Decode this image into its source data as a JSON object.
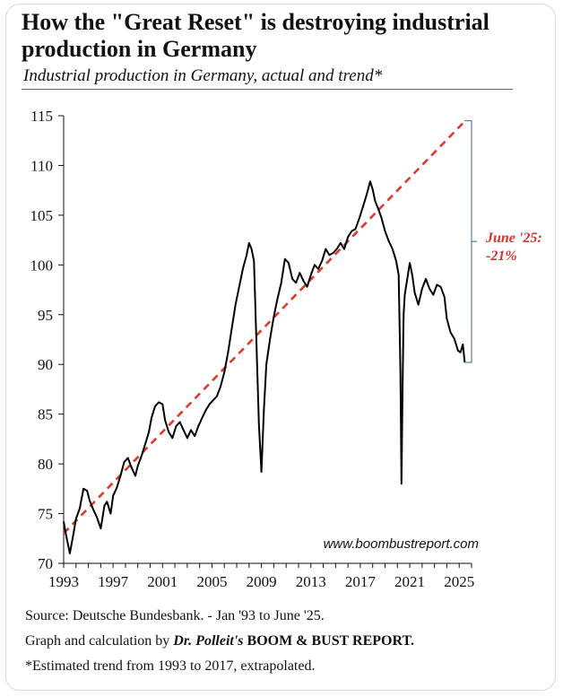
{
  "header": {
    "title": "How the \"Great Reset\" is destroying industrial production in Germany",
    "subtitle": "Industrial production in Germany, actual and trend*"
  },
  "annotation": {
    "line1": "June '25:",
    "line2": "-21%"
  },
  "watermark": "www.boombustreport.com",
  "footer": {
    "source": "Source: Deutsche Bundesbank. - Jan '93 to June '25.",
    "credit_prefix": "Graph and calculation by ",
    "credit_author": "Dr. Polleit's",
    "credit_report": "BOOM & BUST REPORT.",
    "note": "*Estimated trend from 1993 to 2017, extrapolated."
  },
  "colors": {
    "actual": "#000000",
    "trend": "#e0392b",
    "bracket": "#5b7fa6"
  },
  "chart_data": {
    "type": "line",
    "title": "Industrial production in Germany, actual and trend*",
    "xlim": [
      1993,
      2026
    ],
    "ylim": [
      70,
      115
    ],
    "yticks": [
      70,
      75,
      80,
      85,
      90,
      95,
      100,
      105,
      110,
      115
    ],
    "xticks": [
      "1993",
      "1997",
      "2001",
      "2005",
      "2009",
      "2013",
      "2017",
      "2021",
      "2025"
    ],
    "series": [
      {
        "style": "solid",
        "x": [
          1993.0,
          1993.2,
          1993.5,
          1993.8,
          1994.0,
          1994.3,
          1994.6,
          1994.9,
          1995.1,
          1995.4,
          1995.7,
          1996.0,
          1996.3,
          1996.5,
          1996.8,
          1997.0,
          1997.3,
          1997.6,
          1997.9,
          1998.2,
          1998.5,
          1998.8,
          1999.0,
          1999.3,
          1999.6,
          1999.9,
          2000.1,
          2000.4,
          2000.7,
          2001.0,
          2001.2,
          2001.5,
          2001.8,
          2002.1,
          2002.4,
          2002.7,
          2003.0,
          2003.3,
          2003.6,
          2003.9,
          2004.2,
          2004.5,
          2004.8,
          2005.1,
          2005.4,
          2005.7,
          2006.0,
          2006.3,
          2006.6,
          2006.9,
          2007.2,
          2007.5,
          2007.8,
          2008.0,
          2008.2,
          2008.4,
          2008.6,
          2008.8,
          2009.0,
          2009.2,
          2009.4,
          2009.7,
          2010.0,
          2010.3,
          2010.6,
          2010.9,
          2011.2,
          2011.5,
          2011.8,
          2012.1,
          2012.4,
          2012.7,
          2013.0,
          2013.3,
          2013.6,
          2013.9,
          2014.2,
          2014.5,
          2014.8,
          2015.1,
          2015.4,
          2015.7,
          2016.0,
          2016.3,
          2016.6,
          2016.9,
          2017.2,
          2017.5,
          2017.8,
          2018.0,
          2018.2,
          2018.4,
          2018.7,
          2019.0,
          2019.3,
          2019.6,
          2019.9,
          2020.1,
          2020.25,
          2020.33,
          2020.42,
          2020.5,
          2020.6,
          2020.8,
          2021.0,
          2021.2,
          2021.4,
          2021.7,
          2022.0,
          2022.3,
          2022.6,
          2022.9,
          2023.2,
          2023.5,
          2023.8,
          2024.0,
          2024.3,
          2024.6,
          2024.9,
          2025.1,
          2025.3,
          2025.45
        ],
        "y": [
          74.2,
          72.8,
          71.0,
          73.0,
          74.5,
          75.5,
          77.5,
          77.3,
          76.3,
          75.4,
          74.6,
          73.5,
          75.8,
          76.2,
          75.0,
          76.8,
          77.6,
          78.8,
          80.2,
          80.6,
          79.6,
          78.8,
          79.8,
          80.8,
          82.0,
          83.2,
          84.6,
          85.8,
          86.2,
          86.0,
          84.4,
          83.2,
          82.6,
          83.8,
          84.2,
          83.4,
          82.6,
          83.4,
          82.8,
          83.8,
          84.6,
          85.4,
          86.0,
          86.4,
          86.8,
          87.8,
          89.2,
          91.2,
          93.6,
          96.0,
          97.8,
          99.6,
          101.0,
          102.2,
          101.6,
          100.4,
          92.0,
          84.0,
          79.2,
          85.5,
          90.0,
          92.6,
          94.8,
          96.6,
          98.2,
          100.6,
          100.2,
          98.6,
          98.2,
          99.2,
          98.4,
          97.8,
          99.0,
          100.0,
          99.6,
          100.4,
          101.6,
          101.0,
          101.2,
          101.6,
          102.2,
          101.6,
          102.8,
          103.4,
          103.6,
          104.6,
          105.8,
          107.0,
          108.4,
          107.6,
          106.4,
          105.8,
          104.8,
          103.4,
          102.4,
          101.6,
          100.4,
          99.0,
          89.0,
          78.0,
          88.0,
          95.0,
          97.0,
          98.6,
          100.2,
          99.0,
          97.2,
          96.0,
          97.6,
          98.6,
          97.6,
          97.0,
          98.0,
          97.8,
          96.8,
          94.6,
          93.2,
          92.6,
          91.4,
          91.2,
          92.0,
          90.2
        ]
      },
      {
        "style": "dashed",
        "x": [
          1993.0,
          2025.5
        ],
        "y": [
          73.0,
          114.5
        ]
      }
    ],
    "annotations": [
      {
        "text": "June '25: -21%",
        "from_y": 90.2,
        "to_y": 114.5
      }
    ]
  }
}
